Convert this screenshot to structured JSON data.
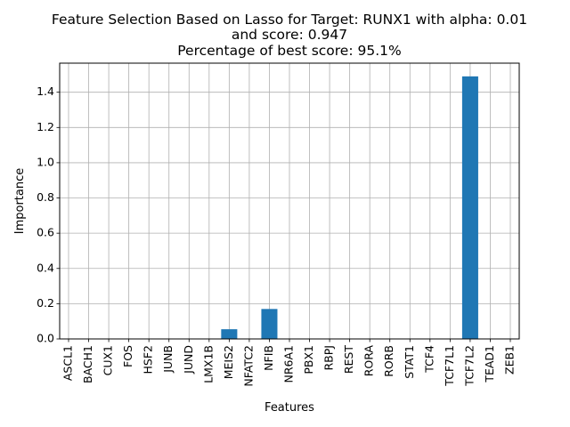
{
  "chart_data": {
    "type": "bar",
    "title_lines": [
      "Feature Selection Based on Lasso for Target: RUNX1 with alpha: 0.01",
      "and score: 0.947",
      "Percentage of best score: 95.1%"
    ],
    "xlabel": "Features",
    "ylabel": "Importance",
    "categories": [
      "ASCL1",
      "BACH1",
      "CUX1",
      "FOS",
      "HSF2",
      "JUNB",
      "JUND",
      "LMX1B",
      "MEIS2",
      "NFATC2",
      "NFIB",
      "NR6A1",
      "PBX1",
      "RBPJ",
      "REST",
      "RORA",
      "RORB",
      "STAT1",
      "TCF4",
      "TCF7L1",
      "TCF7L2",
      "TEAD1",
      "ZEB1"
    ],
    "values": [
      0,
      0,
      0,
      0,
      0,
      0,
      0,
      0,
      0.055,
      0,
      0.17,
      0,
      0,
      0,
      0,
      0,
      0,
      0,
      0,
      0,
      1.49,
      0,
      0
    ],
    "ylim": [
      0,
      1.565
    ],
    "yticks": [
      0.0,
      0.2,
      0.4,
      0.6,
      0.8,
      1.0,
      1.2,
      1.4
    ],
    "ytick_labels": [
      "0.0",
      "0.2",
      "0.4",
      "0.6",
      "0.8",
      "1.0",
      "1.2",
      "1.4"
    ],
    "grid": true,
    "bar_color": "#1f77b4",
    "grid_color": "#b0b0b0"
  }
}
